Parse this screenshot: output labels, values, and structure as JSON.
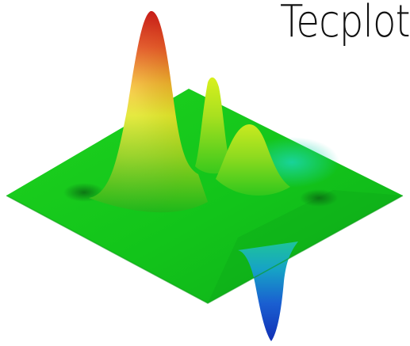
{
  "brand": {
    "wordmark": "Tecplot",
    "colors": {
      "surface_base": "#12c41a",
      "peak_high": "#e02a10",
      "peak_mid": "#f2e21c",
      "trough": "#1230c8",
      "text": "#111111"
    }
  },
  "graphic": {
    "icon": "3d-surface-plot-icon"
  }
}
